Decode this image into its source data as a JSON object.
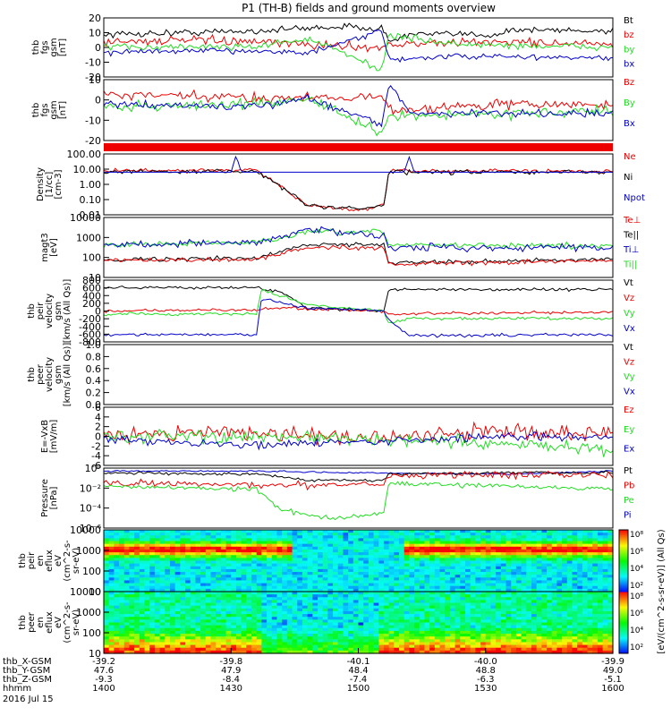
{
  "title": "P1 (TH-B) fields and ground moments overview",
  "colors": {
    "black": "#000000",
    "red": "#ee0000",
    "green": "#22dd22",
    "blue": "#0000cc"
  },
  "chart_data": [
    {
      "type": "line",
      "id": "fgs",
      "ylabel": [
        "thb",
        "fgs",
        "gsm",
        "[nT]"
      ],
      "ylim": [
        -20,
        20
      ],
      "yticks": [
        "20",
        "10",
        "0",
        "-10",
        "-20"
      ],
      "legend": [
        {
          "name": "Bt",
          "color": "#000000"
        },
        {
          "name": "bz",
          "color": "#ee0000"
        },
        {
          "name": "by",
          "color": "#22dd22"
        },
        {
          "name": "bx",
          "color": "#0000cc"
        }
      ]
    },
    {
      "type": "line",
      "id": "fgs2",
      "ylabel": [
        "thb",
        "fgs",
        "gsm",
        "[nT]"
      ],
      "ylim": [
        -25,
        20
      ],
      "yticks": [
        "10",
        "0",
        "-10",
        "-20"
      ],
      "legend": [
        {
          "name": "Bz",
          "color": "#ee0000"
        },
        {
          "name": "By",
          "color": "#22dd22"
        },
        {
          "name": "Bx",
          "color": "#0000cc"
        }
      ]
    },
    {
      "type": "line",
      "id": "density",
      "ylabel": [
        "Density",
        "[1/cc]",
        "[cm-3]"
      ],
      "ylim": [
        "0.005",
        "500"
      ],
      "yticks": [
        "100.00",
        "10.00",
        "1.00",
        "0.10",
        "0.01"
      ],
      "legend": [
        {
          "name": "Ne",
          "color": "#ee0000"
        },
        {
          "name": "Ni",
          "color": "#000000"
        },
        {
          "name": "Npot",
          "color": "#0000cc"
        }
      ]
    },
    {
      "type": "line",
      "id": "temp",
      "ylabel": [
        "magt3",
        "[eV]"
      ],
      "ylim": [
        "3",
        "10000"
      ],
      "yticks": [
        "10000",
        "1000",
        "100",
        "10"
      ],
      "legend": [
        {
          "name": "Te⊥",
          "color": "#ee0000"
        },
        {
          "name": "Te||",
          "color": "#000000"
        },
        {
          "name": "Ti⊥",
          "color": "#0000cc"
        },
        {
          "name": "Ti||",
          "color": "#22dd22"
        }
      ]
    },
    {
      "type": "line",
      "id": "vel",
      "ylabel": [
        "thb",
        "peir",
        "velocity",
        "gsm",
        "[km/s (All Qs)]"
      ],
      "ylim": [
        -800,
        800
      ],
      "yticks": [
        "800",
        "600",
        "400",
        "200",
        "0",
        "-200",
        "-400",
        "-600",
        "-800"
      ],
      "legend": [
        {
          "name": "Vt",
          "color": "#000000"
        },
        {
          "name": "Vz",
          "color": "#ee0000"
        },
        {
          "name": "Vy",
          "color": "#22dd22"
        },
        {
          "name": "Vx",
          "color": "#0000cc"
        }
      ]
    },
    {
      "type": "line",
      "id": "vel2",
      "ylabel": [
        "thb",
        "peer",
        "velocity",
        "gsm",
        "[km/s (All Qs)]"
      ],
      "ylim": [
        0,
        1
      ],
      "yticks": [
        "1.0",
        "0.8",
        "0.6",
        "0.4",
        "0.2",
        "0.0"
      ],
      "legend": [
        {
          "name": "Vt",
          "color": "#000000"
        },
        {
          "name": "Vz",
          "color": "#ee0000"
        },
        {
          "name": "Vy",
          "color": "#22dd22"
        },
        {
          "name": "Vx",
          "color": "#0000cc"
        }
      ]
    },
    {
      "type": "line",
      "id": "efield",
      "ylabel": [
        "E=-VxB",
        "[mV/m]"
      ],
      "ylim": [
        -6,
        6
      ],
      "yticks": [
        "6",
        "4",
        "2",
        "0",
        "-2",
        "-4",
        "-6"
      ],
      "legend": [
        {
          "name": "Ez",
          "color": "#ee0000"
        },
        {
          "name": "Ey",
          "color": "#22dd22"
        },
        {
          "name": "Ex",
          "color": "#0000cc"
        }
      ]
    },
    {
      "type": "line",
      "id": "pressure",
      "ylabel": [
        "Pressure",
        "[nPa]"
      ],
      "ylim": [
        "1e-6",
        "1"
      ],
      "yticks": [
        "10⁰",
        "10⁻²",
        "10⁻⁴",
        "10⁻⁶"
      ],
      "ytick_minor": [
        "10⁻¹",
        "10⁻³",
        "10⁻⁵"
      ],
      "legend": [
        {
          "name": "Pt",
          "color": "#000000"
        },
        {
          "name": "Pb",
          "color": "#ee0000"
        },
        {
          "name": "Pe",
          "color": "#22dd22"
        },
        {
          "name": "Pi",
          "color": "#0000cc"
        }
      ]
    },
    {
      "type": "heatmap",
      "id": "peir",
      "ylabel": [
        "thb",
        "peir",
        "en",
        "eflux",
        "eV",
        "(cm^2-s-",
        "sr-eV)"
      ],
      "ylim": [
        "5",
        "30000"
      ],
      "yticks": [
        "10000",
        "1000",
        "100",
        "10"
      ]
    },
    {
      "type": "heatmap",
      "id": "peer",
      "ylabel": [
        "thb",
        "peer",
        "en",
        "eflux",
        "eV",
        "(cm^2-s-",
        "sr-eV)"
      ],
      "ylim": [
        "5",
        "30000"
      ],
      "yticks": [
        "10000",
        "1000",
        "100",
        "10"
      ]
    }
  ],
  "colorbar": {
    "label": "[eV/(cm^2-s-sr-eV)] (All Qs)",
    "ticks_top": [
      "10⁸",
      "10⁶",
      "10⁴",
      "10²"
    ],
    "ticks_bottom": [
      "10⁸",
      "10⁶",
      "10⁴",
      "10²"
    ]
  },
  "xaxis": {
    "rows": [
      {
        "label": "thb_X-GSM",
        "values": [
          "-39.2",
          "-39.8",
          "-40.1",
          "-40.0",
          "-39.9"
        ]
      },
      {
        "label": "thb_Y-GSM",
        "values": [
          "47.6",
          "47.9",
          "48.4",
          "48.8",
          "49.0"
        ]
      },
      {
        "label": "thb_Z-GSM",
        "values": [
          "-9.3",
          "-8.4",
          "-7.4",
          "-6.3",
          "-5.1"
        ]
      },
      {
        "label": "hhmm",
        "values": [
          "1400",
          "1430",
          "1500",
          "1530",
          "1600"
        ]
      }
    ],
    "date": "2016 Jul 15"
  }
}
